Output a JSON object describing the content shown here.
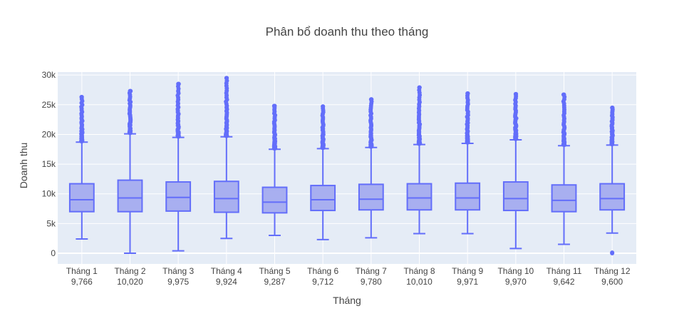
{
  "chart_data": {
    "type": "box",
    "title": "Phân bổ doanh thu theo tháng",
    "xlabel": "Tháng",
    "ylabel": "Doanh thu",
    "ylim": [
      -1800,
      30500
    ],
    "yticks": [
      0,
      5000,
      10000,
      15000,
      20000,
      25000,
      30000
    ],
    "ytick_labels": [
      "0",
      "5k",
      "10k",
      "15k",
      "20k",
      "25k",
      "30k"
    ],
    "grid": true,
    "legend": "none",
    "colors": {
      "plot_bg": "#e5ecf6",
      "box_fill": "#a8aff0",
      "line": "#636efa",
      "outlier": "#636efa",
      "text": "#444444",
      "grid": "#ffffff"
    },
    "categories": [
      "Tháng 1",
      "Tháng 2",
      "Tháng 3",
      "Tháng 4",
      "Tháng 5",
      "Tháng 6",
      "Tháng 7",
      "Tháng 8",
      "Tháng 9",
      "Tháng 10",
      "Tháng 11",
      "Tháng 12"
    ],
    "category_counts": [
      "9,766",
      "10,020",
      "9,975",
      "9,924",
      "9,287",
      "9,712",
      "9,780",
      "10,010",
      "9,971",
      "9,970",
      "9,642",
      "9,600"
    ],
    "boxes": [
      {
        "min": 2400,
        "q1": 7000,
        "median": 9000,
        "q3": 11700,
        "upper_fence": 18700,
        "max": 26300,
        "low_outliers": []
      },
      {
        "min": 0,
        "q1": 7000,
        "median": 9300,
        "q3": 12300,
        "upper_fence": 20100,
        "max": 27300,
        "low_outliers": []
      },
      {
        "min": 400,
        "q1": 7100,
        "median": 9400,
        "q3": 12000,
        "upper_fence": 19500,
        "max": 28500,
        "low_outliers": []
      },
      {
        "min": 2500,
        "q1": 6900,
        "median": 9200,
        "q3": 12100,
        "upper_fence": 19600,
        "max": 29500,
        "low_outliers": []
      },
      {
        "min": 3000,
        "q1": 6800,
        "median": 8600,
        "q3": 11100,
        "upper_fence": 17500,
        "max": 24800,
        "low_outliers": []
      },
      {
        "min": 2300,
        "q1": 7200,
        "median": 9000,
        "q3": 11400,
        "upper_fence": 17600,
        "max": 24700,
        "low_outliers": []
      },
      {
        "min": 2600,
        "q1": 7300,
        "median": 9100,
        "q3": 11600,
        "upper_fence": 17800,
        "max": 25900,
        "low_outliers": []
      },
      {
        "min": 3300,
        "q1": 7300,
        "median": 9300,
        "q3": 11700,
        "upper_fence": 18300,
        "max": 27900,
        "low_outliers": []
      },
      {
        "min": 3300,
        "q1": 7300,
        "median": 9300,
        "q3": 11800,
        "upper_fence": 18500,
        "max": 26900,
        "low_outliers": []
      },
      {
        "min": 800,
        "q1": 7200,
        "median": 9200,
        "q3": 12000,
        "upper_fence": 19100,
        "max": 26800,
        "low_outliers": []
      },
      {
        "min": 1500,
        "q1": 7000,
        "median": 8900,
        "q3": 11500,
        "upper_fence": 18100,
        "max": 26700,
        "low_outliers": []
      },
      {
        "min": 3400,
        "q1": 7300,
        "median": 9200,
        "q3": 11700,
        "upper_fence": 18200,
        "max": 24500,
        "low_outliers": [
          100,
          0
        ]
      }
    ]
  }
}
